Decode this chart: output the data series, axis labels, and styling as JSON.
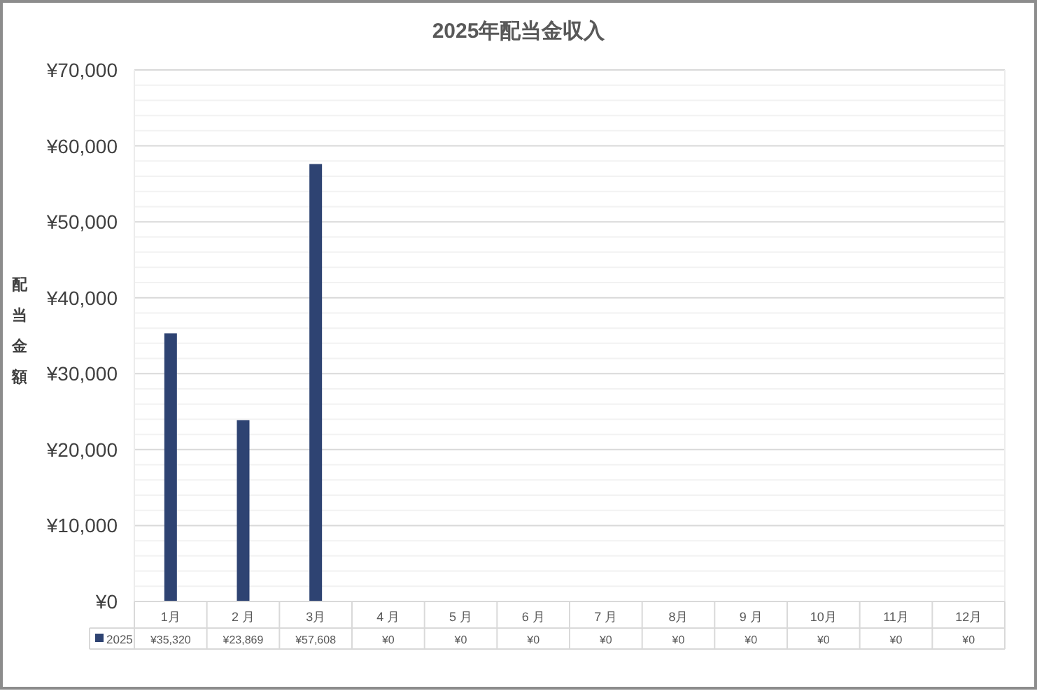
{
  "chart_data": {
    "type": "bar",
    "title": "2025年配当金収入",
    "ylabel": "配当金額",
    "categories": [
      "1月",
      "2 月",
      "3月",
      "4 月",
      "5 月",
      "6 月",
      "7 月",
      "8月",
      "9 月",
      "10月",
      "11月",
      "12月"
    ],
    "series": [
      {
        "name": "2025",
        "color": "#2e4372",
        "values": [
          35320,
          23869,
          57608,
          0,
          0,
          0,
          0,
          0,
          0,
          0,
          0,
          0
        ],
        "value_labels": [
          "¥35,320",
          "¥23,869",
          "¥57,608",
          "¥0",
          "¥0",
          "¥0",
          "¥0",
          "¥0",
          "¥0",
          "¥0",
          "¥0",
          "¥0"
        ]
      }
    ],
    "ylim": [
      0,
      70000
    ],
    "yticks": [
      {
        "value": 0,
        "label": "¥0"
      },
      {
        "value": 10000,
        "label": "¥10,000"
      },
      {
        "value": 20000,
        "label": "¥20,000"
      },
      {
        "value": 30000,
        "label": "¥30,000"
      },
      {
        "value": 40000,
        "label": "¥40,000"
      },
      {
        "value": 50000,
        "label": "¥50,000"
      },
      {
        "value": 60000,
        "label": "¥60,000"
      },
      {
        "value": 70000,
        "label": "¥70,000"
      }
    ],
    "grid": "y",
    "legend": "bottom left"
  }
}
